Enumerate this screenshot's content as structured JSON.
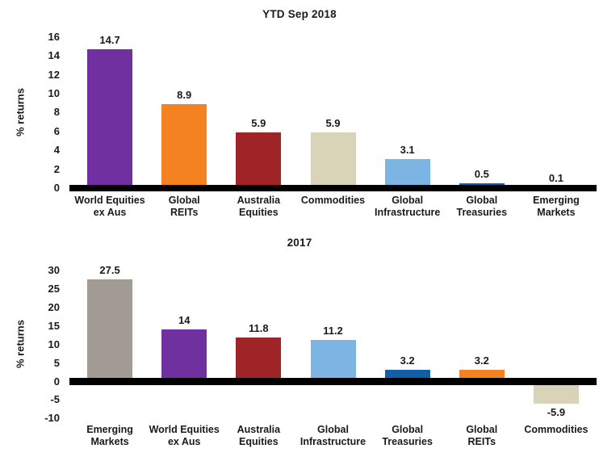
{
  "page": {
    "background": "#ffffff"
  },
  "chart_data": [
    {
      "type": "bar",
      "title": "YTD Sep 2018",
      "xlabel": "",
      "ylabel": "% returns",
      "ylim": [
        0,
        16
      ],
      "yticks": [
        0,
        2,
        4,
        6,
        8,
        10,
        12,
        14,
        16
      ],
      "grid": false,
      "legend": "none",
      "categories": [
        "World Equities\nex Aus",
        "Global\nREITs",
        "Australia\nEquities",
        "Commodities",
        "Global\nInfrastructure",
        "Global\nTreasuries",
        "Emerging\nMarkets"
      ],
      "values": [
        14.7,
        8.9,
        5.9,
        5.9,
        3.1,
        0.5,
        0.1
      ],
      "value_labels": [
        "14.7",
        "8.9",
        "5.9",
        "5.9",
        "3.1",
        "0.5",
        "0.1"
      ],
      "bar_colors": [
        "#7030A0",
        "#F58220",
        "#9E2428",
        "#D9D4B8",
        "#7CB5E3",
        "#135FA5",
        "#A29B93"
      ]
    },
    {
      "type": "bar",
      "title": "2017",
      "xlabel": "",
      "ylabel": "% returns",
      "ylim": [
        -10,
        30
      ],
      "yticks": [
        -10,
        -5,
        0,
        5,
        10,
        15,
        20,
        25,
        30
      ],
      "grid": false,
      "legend": "none",
      "categories": [
        "Emerging\nMarkets",
        "World Equities\nex Aus",
        "Australia\nEquities",
        "Global\nInfrastructure",
        "Global\nTreasuries",
        "Global\nREITs",
        "Commodities"
      ],
      "values": [
        27.5,
        14,
        11.8,
        11.2,
        3.2,
        3.2,
        -5.9
      ],
      "value_labels": [
        "27.5",
        "14",
        "11.8",
        "11.2",
        "3.2",
        "3.2",
        "-5.9"
      ],
      "bar_colors": [
        "#A29B93",
        "#7030A0",
        "#9E2428",
        "#7CB5E3",
        "#135FA5",
        "#F58220",
        "#D9D4B8"
      ]
    }
  ],
  "colors": {
    "world_equities_ex_aus": "#7030A0",
    "global_reits": "#F58220",
    "australia_equities": "#9E2428",
    "commodities": "#D9D4B8",
    "global_infrastructure": "#7CB5E3",
    "global_treasuries": "#135FA5",
    "emerging_markets": "#A29B93",
    "axis_line": "#000000",
    "text": "#1A1A1A"
  }
}
